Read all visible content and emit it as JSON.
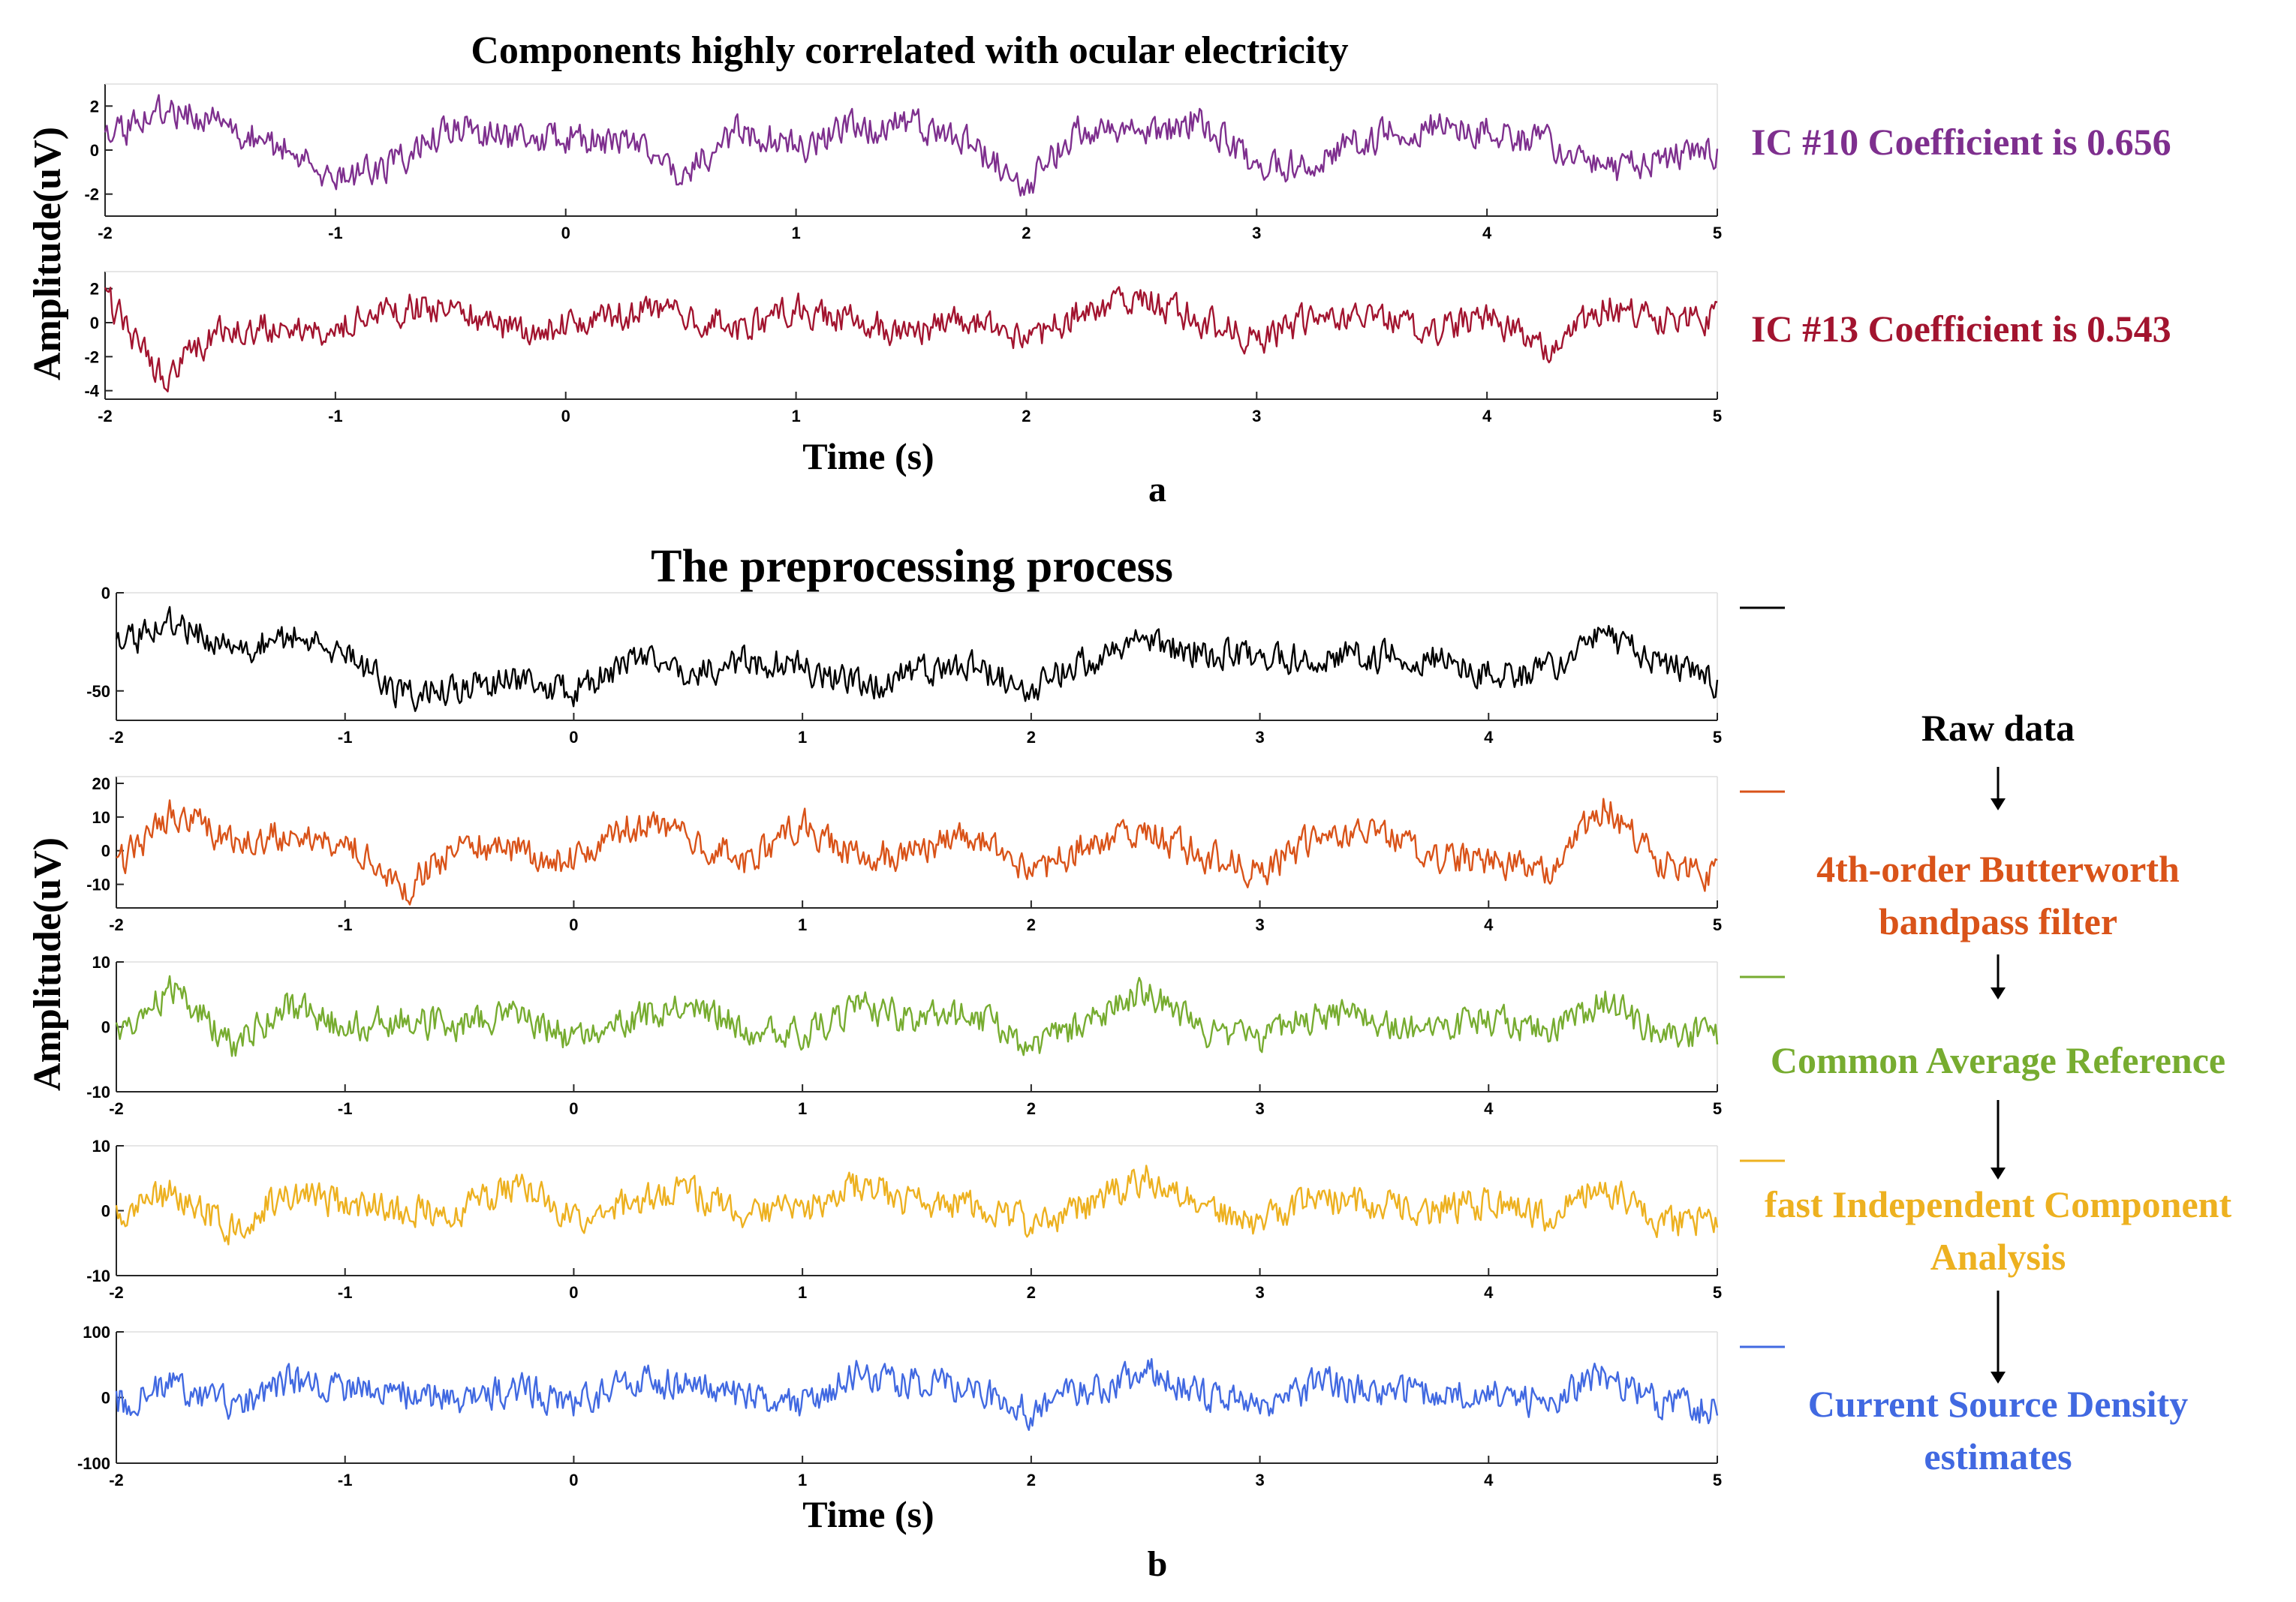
{
  "panel_a": {
    "title": "Components highly correlated with ocular electricity",
    "ylabel": "Amplitude(uV)",
    "xlabel": "Time (s)",
    "caption": "a"
  },
  "panel_b": {
    "title": "The preprocessing process",
    "ylabel": "Amplitude(uV)",
    "xlabel": "Time (s)",
    "caption": "b",
    "flow": [
      {
        "lines": [
          "Raw data"
        ],
        "color": "#000000"
      },
      {
        "lines": [
          "4th-order Butterworth",
          "bandpass filter"
        ],
        "color": "#D95319"
      },
      {
        "lines": [
          "Common Average Reference"
        ],
        "color": "#77AC30"
      },
      {
        "lines": [
          "fast Independent Component",
          "Analysis"
        ],
        "color": "#EDB120"
      },
      {
        "lines": [
          "Current Source Density",
          "estimates"
        ],
        "color": "#4169E1"
      }
    ]
  },
  "chart_data": [
    {
      "type": "line",
      "title": "Components highly correlated with ocular electricity",
      "xlabel": "Time (s)",
      "ylabel": "Amplitude(uV)",
      "xlim": [
        -2,
        5
      ],
      "series": [
        {
          "name": "IC #10",
          "label": "IC #10  Coefficient is 0.656",
          "color": "#7E2F8E",
          "ylim": [
            -3,
            3
          ],
          "yticks": [
            -2,
            0,
            2
          ],
          "x": [
            -2,
            -1.75,
            -1.5,
            -1.25,
            -1,
            -0.75,
            -0.5,
            -0.25,
            0,
            0.25,
            0.5,
            0.75,
            1,
            1.25,
            1.5,
            1.75,
            2,
            2.25,
            2.5,
            2.75,
            3,
            3.25,
            3.5,
            3.75,
            4,
            4.25,
            4.5,
            4.75,
            5
          ],
          "y": [
            0.4,
            1.8,
            1.2,
            0.2,
            -1.3,
            -0.6,
            1.1,
            0.5,
            0.6,
            0.3,
            -1.2,
            0.9,
            0.1,
            1.0,
            1.2,
            0.3,
            -1.5,
            1.1,
            0.6,
            1.5,
            -1.0,
            -0.4,
            0.5,
            1.2,
            0.8,
            0.4,
            -1.0,
            -0.4,
            0.0
          ]
        },
        {
          "name": "IC #13",
          "label": "IC #13  Coefficient is 0.543",
          "color": "#A2142F",
          "ylim": [
            -4.5,
            3
          ],
          "yticks": [
            -4,
            -2,
            0,
            2
          ],
          "x": [
            -2,
            -1.75,
            -1.5,
            -1.25,
            -1,
            -0.75,
            -0.5,
            -0.25,
            0,
            0.25,
            0.5,
            0.75,
            1,
            1.25,
            1.5,
            1.75,
            2,
            2.25,
            2.5,
            2.75,
            3,
            3.25,
            3.5,
            3.75,
            4,
            4.25,
            4.5,
            4.75,
            5
          ],
          "y": [
            1.5,
            -3.2,
            -0.6,
            -0.2,
            -0.4,
            0.8,
            0.9,
            -0.4,
            -0.2,
            0.6,
            0.7,
            -0.3,
            0.8,
            0.2,
            -0.6,
            0.1,
            -1.3,
            0.9,
            1.5,
            0.2,
            -1.1,
            0.3,
            0.6,
            -0.4,
            0.2,
            -1.5,
            1.0,
            0.3,
            0.2
          ]
        }
      ]
    },
    {
      "type": "line",
      "title": "The preprocessing process",
      "xlabel": "Time (s)",
      "ylabel": "Amplitude(uV)",
      "xlim": [
        -2,
        5
      ],
      "series": [
        {
          "name": "Raw data",
          "color": "#000000",
          "ylim": [
            -65,
            0
          ],
          "yticks": [
            -50,
            0
          ],
          "x": [
            -2,
            -1.75,
            -1.5,
            -1.25,
            -1,
            -0.75,
            -0.5,
            -0.25,
            0,
            0.25,
            0.5,
            0.75,
            1,
            1.25,
            1.5,
            1.75,
            2,
            2.25,
            2.5,
            2.75,
            3,
            3.25,
            3.5,
            3.75,
            4,
            4.25,
            4.5,
            4.75,
            5
          ],
          "y": [
            -28,
            -15,
            -30,
            -22,
            -30,
            -52,
            -48,
            -45,
            -50,
            -35,
            -42,
            -35,
            -38,
            -48,
            -40,
            -38,
            -48,
            -34,
            -25,
            -30,
            -35,
            -32,
            -33,
            -32,
            -42,
            -40,
            -22,
            -35,
            -45
          ]
        },
        {
          "name": "4th-order Butterworth bandpass filter",
          "color": "#D95319",
          "ylim": [
            -17,
            22
          ],
          "yticks": [
            -10,
            0,
            10,
            20
          ],
          "x": [
            -2,
            -1.75,
            -1.5,
            -1.25,
            -1,
            -0.75,
            -0.5,
            -0.25,
            0,
            0.25,
            0.5,
            0.75,
            1,
            1.25,
            1.5,
            1.75,
            2,
            2.25,
            2.5,
            2.75,
            3,
            3.25,
            3.5,
            3.75,
            4,
            4.25,
            4.5,
            4.75,
            5
          ],
          "y": [
            -5,
            12,
            2,
            5,
            3,
            -12,
            2,
            0,
            -3,
            8,
            5,
            -3,
            8,
            -2,
            0,
            4,
            -8,
            3,
            6,
            -1,
            -7,
            4,
            7,
            -1,
            -4,
            -6,
            14,
            -3,
            -8
          ]
        },
        {
          "name": "Common Average Reference",
          "color": "#77AC30",
          "ylim": [
            -10,
            10
          ],
          "yticks": [
            -10,
            0,
            10
          ],
          "x": [
            -2,
            -1.75,
            -1.5,
            -1.25,
            -1,
            -0.75,
            -0.5,
            -0.25,
            0,
            0.25,
            0.5,
            0.75,
            1,
            1.25,
            1.5,
            1.75,
            2,
            2.25,
            2.5,
            2.75,
            3,
            3.25,
            3.5,
            3.75,
            4,
            4.25,
            4.5,
            4.75,
            5
          ],
          "y": [
            -1,
            6,
            -3,
            3,
            0,
            1,
            0,
            2,
            -2,
            1,
            4,
            0,
            -1,
            3,
            1,
            2,
            -3,
            1,
            6,
            -1,
            -2,
            2,
            1,
            0,
            1,
            -1,
            4,
            -1,
            -1
          ]
        },
        {
          "name": "fast Independent Component Analysis",
          "color": "#EDB120",
          "ylim": [
            -10,
            10
          ],
          "yticks": [
            -10,
            0,
            10
          ],
          "x": [
            -2,
            -1.75,
            -1.5,
            -1.25,
            -1,
            -0.75,
            -0.5,
            -0.25,
            0,
            0.25,
            0.5,
            0.75,
            1,
            1.25,
            1.5,
            1.75,
            2,
            2.25,
            2.5,
            2.75,
            3,
            3.25,
            3.5,
            3.75,
            4,
            4.25,
            4.5,
            4.75,
            5
          ],
          "y": [
            -1,
            3,
            -3,
            3,
            1,
            0,
            0,
            4,
            -1,
            1,
            3,
            0,
            0,
            4,
            1,
            1,
            -2,
            1,
            5,
            0,
            -2,
            2,
            1,
            0,
            1,
            -1,
            4,
            -2,
            -1
          ]
        },
        {
          "name": "Current Source Density estimates",
          "color": "#4169E1",
          "ylim": [
            -100,
            100
          ],
          "yticks": [
            -100,
            0,
            100
          ],
          "x": [
            -2,
            -1.75,
            -1.5,
            -1.25,
            -1,
            -0.75,
            -0.5,
            -0.25,
            0,
            0.25,
            0.5,
            0.75,
            1,
            1.25,
            1.5,
            1.75,
            2,
            2.25,
            2.5,
            2.75,
            3,
            3.25,
            3.5,
            3.75,
            4,
            4.25,
            4.5,
            4.75,
            5
          ],
          "y": [
            -10,
            20,
            -15,
            25,
            10,
            5,
            0,
            15,
            -10,
            20,
            25,
            0,
            -10,
            35,
            20,
            15,
            -20,
            10,
            40,
            5,
            -20,
            20,
            10,
            5,
            10,
            -10,
            40,
            -10,
            -20
          ]
        }
      ]
    }
  ]
}
